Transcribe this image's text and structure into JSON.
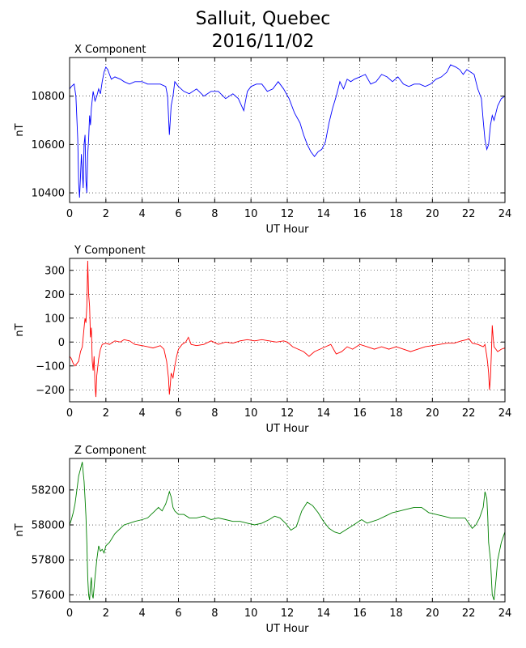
{
  "title": {
    "line1": "Salluit, Quebec",
    "line2": "2016/11/02"
  },
  "chart_data": [
    {
      "type": "line",
      "title": "X Component",
      "xlabel": "UT Hour",
      "ylabel": "nT",
      "xlim": [
        0,
        24
      ],
      "ylim": [
        10360,
        10960
      ],
      "xticks": [
        0,
        2,
        4,
        6,
        8,
        10,
        12,
        14,
        16,
        18,
        20,
        22,
        24
      ],
      "yticks": [
        10400,
        10600,
        10800
      ],
      "grid": true,
      "color": "#0000ff",
      "series": [
        {
          "x": [
            0,
            0.1,
            0.25,
            0.35,
            0.45,
            0.5,
            0.55,
            0.6,
            0.65,
            0.7,
            0.75,
            0.8,
            0.85,
            0.9,
            0.95,
            1.0,
            1.05,
            1.1,
            1.15,
            1.2,
            1.3,
            1.4,
            1.5,
            1.6,
            1.7,
            1.8,
            1.9,
            2.0,
            2.1,
            2.2,
            2.3,
            2.5,
            2.8,
            3.0,
            3.3,
            3.6,
            4.0,
            4.3,
            4.6,
            5.0,
            5.3,
            5.4,
            5.45,
            5.5,
            5.55,
            5.6,
            5.7,
            5.8,
            6.0,
            6.3,
            6.6,
            7.0,
            7.4,
            7.8,
            8.2,
            8.6,
            9.0,
            9.3,
            9.6,
            9.7,
            9.8,
            10.0,
            10.3,
            10.6,
            10.9,
            11.2,
            11.5,
            11.8,
            12.1,
            12.4,
            12.7,
            12.9,
            13.1,
            13.3,
            13.5,
            13.7,
            13.9,
            14.1,
            14.3,
            14.5,
            14.7,
            14.9,
            15.1,
            15.3,
            15.5,
            15.7,
            16.0,
            16.3,
            16.6,
            16.9,
            17.2,
            17.5,
            17.8,
            18.1,
            18.4,
            18.7,
            19.0,
            19.3,
            19.6,
            19.9,
            20.2,
            20.5,
            20.8,
            21.0,
            21.3,
            21.5,
            21.7,
            21.9,
            22.1,
            22.3,
            22.5,
            22.7,
            22.8,
            22.9,
            23.0,
            23.1,
            23.2,
            23.3,
            23.4,
            23.6,
            23.8,
            24.0
          ],
          "y": [
            10830,
            10840,
            10850,
            10800,
            10620,
            10440,
            10380,
            10470,
            10560,
            10490,
            10420,
            10600,
            10640,
            10450,
            10400,
            10560,
            10620,
            10720,
            10680,
            10750,
            10820,
            10780,
            10800,
            10830,
            10810,
            10860,
            10900,
            10920,
            10910,
            10890,
            10870,
            10880,
            10870,
            10860,
            10850,
            10860,
            10860,
            10850,
            10850,
            10850,
            10840,
            10800,
            10720,
            10640,
            10700,
            10760,
            10800,
            10860,
            10840,
            10820,
            10810,
            10830,
            10800,
            10820,
            10820,
            10790,
            10810,
            10790,
            10740,
            10780,
            10820,
            10840,
            10850,
            10850,
            10820,
            10830,
            10860,
            10830,
            10790,
            10730,
            10690,
            10640,
            10600,
            10570,
            10550,
            10570,
            10580,
            10610,
            10690,
            10750,
            10800,
            10860,
            10830,
            10870,
            10860,
            10870,
            10880,
            10890,
            10850,
            10860,
            10890,
            10880,
            10860,
            10880,
            10850,
            10840,
            10850,
            10850,
            10840,
            10850,
            10870,
            10880,
            10900,
            10930,
            10920,
            10910,
            10890,
            10910,
            10900,
            10890,
            10830,
            10790,
            10700,
            10620,
            10580,
            10600,
            10680,
            10720,
            10700,
            10760,
            10790,
            10800
          ]
        }
      ]
    },
    {
      "type": "line",
      "title": "Y Component",
      "xlabel": "UT Hour",
      "ylabel": "nT",
      "xlim": [
        0,
        24
      ],
      "ylim": [
        -250,
        350
      ],
      "xticks": [
        0,
        2,
        4,
        6,
        8,
        10,
        12,
        14,
        16,
        18,
        20,
        22,
        24
      ],
      "yticks": [
        -200,
        -100,
        0,
        100,
        200,
        300
      ],
      "grid": true,
      "color": "#ff0000",
      "series": [
        {
          "x": [
            0,
            0.1,
            0.2,
            0.3,
            0.4,
            0.5,
            0.6,
            0.7,
            0.8,
            0.85,
            0.9,
            0.95,
            1.0,
            1.05,
            1.1,
            1.15,
            1.2,
            1.25,
            1.3,
            1.35,
            1.4,
            1.45,
            1.5,
            1.6,
            1.7,
            1.8,
            2.0,
            2.2,
            2.5,
            2.8,
            3.0,
            3.3,
            3.6,
            4.0,
            4.3,
            4.6,
            5.0,
            5.2,
            5.35,
            5.45,
            5.5,
            5.55,
            5.6,
            5.7,
            5.8,
            5.9,
            6.0,
            6.2,
            6.4,
            6.55,
            6.7,
            7.0,
            7.4,
            7.8,
            8.2,
            8.6,
            9.0,
            9.4,
            9.8,
            10.2,
            10.6,
            11.0,
            11.4,
            11.8,
            12.0,
            12.3,
            12.6,
            12.9,
            13.2,
            13.5,
            13.8,
            14.1,
            14.4,
            14.7,
            15.0,
            15.3,
            15.6,
            16.0,
            16.4,
            16.8,
            17.2,
            17.6,
            18.0,
            18.4,
            18.8,
            19.2,
            19.6,
            20.0,
            20.4,
            20.8,
            21.2,
            21.6,
            21.9,
            22.0,
            22.2,
            22.5,
            22.8,
            22.9,
            23.0,
            23.05,
            23.1,
            23.15,
            23.2,
            23.25,
            23.3,
            23.35,
            23.4,
            23.5,
            23.6,
            23.8,
            24.0
          ],
          "y": [
            -60,
            -70,
            -90,
            -100,
            -90,
            -80,
            -40,
            -20,
            60,
            100,
            80,
            150,
            340,
            200,
            150,
            20,
            60,
            -80,
            -120,
            -60,
            -180,
            -230,
            -140,
            -70,
            -30,
            -10,
            -5,
            -10,
            5,
            0,
            10,
            5,
            -10,
            -15,
            -20,
            -25,
            -15,
            -30,
            -80,
            -150,
            -220,
            -180,
            -130,
            -150,
            -100,
            -60,
            -30,
            -10,
            0,
            20,
            -10,
            -15,
            -10,
            5,
            -10,
            0,
            -5,
            5,
            10,
            5,
            10,
            5,
            0,
            5,
            0,
            -20,
            -30,
            -40,
            -60,
            -40,
            -30,
            -20,
            -10,
            -50,
            -40,
            -20,
            -30,
            -10,
            -20,
            -30,
            -20,
            -30,
            -20,
            -30,
            -40,
            -30,
            -20,
            -15,
            -10,
            -5,
            -5,
            5,
            10,
            15,
            -5,
            -10,
            -20,
            -10,
            -60,
            -90,
            -130,
            -200,
            -150,
            -50,
            70,
            20,
            -20,
            -30,
            -40,
            -30,
            -25
          ]
        }
      ]
    },
    {
      "type": "line",
      "title": "Z Component",
      "xlabel": "UT Hour",
      "ylabel": "nT",
      "xlim": [
        0,
        24
      ],
      "ylim": [
        57560,
        58380
      ],
      "xticks": [
        0,
        2,
        4,
        6,
        8,
        10,
        12,
        14,
        16,
        18,
        20,
        22,
        24
      ],
      "yticks": [
        57600,
        57800,
        58000,
        58200
      ],
      "grid": true,
      "color": "#008000",
      "series": [
        {
          "x": [
            0,
            0.1,
            0.2,
            0.3,
            0.4,
            0.5,
            0.6,
            0.7,
            0.75,
            0.8,
            0.85,
            0.9,
            0.95,
            1.0,
            1.05,
            1.1,
            1.15,
            1.2,
            1.25,
            1.3,
            1.4,
            1.5,
            1.6,
            1.7,
            1.8,
            1.9,
            2.0,
            2.2,
            2.5,
            2.8,
            3.0,
            3.3,
            3.6,
            4.0,
            4.3,
            4.5,
            4.7,
            4.9,
            5.1,
            5.3,
            5.45,
            5.5,
            5.6,
            5.7,
            5.8,
            6.0,
            6.3,
            6.6,
            7.0,
            7.4,
            7.8,
            8.2,
            8.6,
            9.0,
            9.4,
            9.8,
            10.2,
            10.6,
            11.0,
            11.3,
            11.6,
            11.9,
            12.2,
            12.5,
            12.8,
            13.1,
            13.4,
            13.7,
            14.0,
            14.3,
            14.6,
            14.9,
            15.2,
            15.5,
            15.8,
            16.1,
            16.4,
            16.7,
            17.0,
            17.4,
            17.8,
            18.2,
            18.6,
            19.0,
            19.4,
            19.8,
            20.2,
            20.6,
            21.0,
            21.4,
            21.8,
            22.0,
            22.2,
            22.4,
            22.6,
            22.8,
            22.9,
            23.0,
            23.05,
            23.1,
            23.2,
            23.3,
            23.4,
            23.5,
            23.6,
            23.8,
            24.0
          ],
          "y": [
            58000,
            58030,
            58070,
            58120,
            58200,
            58280,
            58320,
            58360,
            58300,
            58250,
            58150,
            58050,
            57900,
            57700,
            57600,
            57570,
            57650,
            57700,
            57600,
            57580,
            57700,
            57800,
            57880,
            57850,
            57860,
            57840,
            57880,
            57900,
            57950,
            57980,
            58000,
            58010,
            58020,
            58030,
            58040,
            58060,
            58080,
            58100,
            58080,
            58120,
            58170,
            58190,
            58160,
            58100,
            58080,
            58060,
            58060,
            58040,
            58040,
            58050,
            58030,
            58040,
            58030,
            58020,
            58020,
            58010,
            58000,
            58010,
            58030,
            58050,
            58040,
            58010,
            57970,
            57990,
            58080,
            58130,
            58110,
            58070,
            58020,
            57980,
            57960,
            57950,
            57970,
            57990,
            58010,
            58030,
            58010,
            58020,
            58030,
            58050,
            58070,
            58080,
            58090,
            58100,
            58100,
            58070,
            58060,
            58050,
            58040,
            58040,
            58040,
            58010,
            57980,
            58000,
            58040,
            58100,
            58190,
            58150,
            58050,
            57900,
            57800,
            57600,
            57570,
            57680,
            57800,
            57900,
            57960
          ]
        }
      ]
    }
  ]
}
